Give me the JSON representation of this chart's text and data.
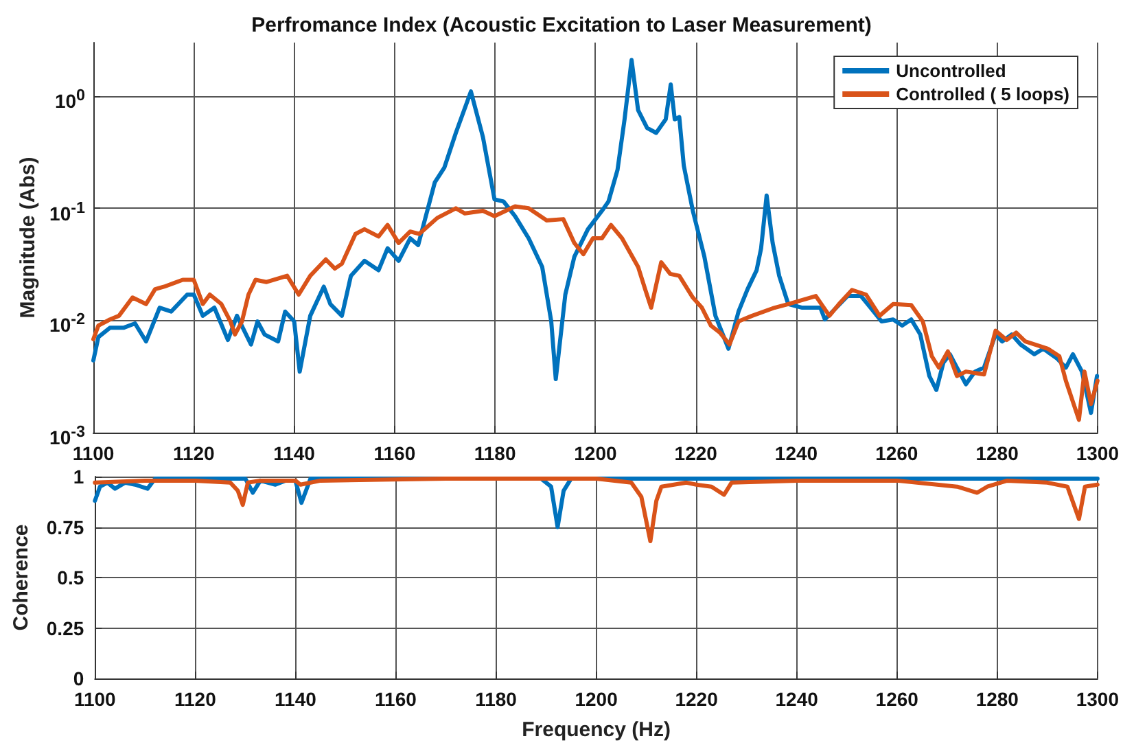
{
  "chart_data": [
    {
      "type": "line",
      "title": "Perfromance Index (Acoustic Excitation to Laser Measurement)",
      "ylabel": "Magnitude (Abs)",
      "log": "y",
      "grid": true,
      "legend": "top right",
      "xlim": [
        1100,
        1300
      ],
      "xticks": [
        1100,
        1120,
        1140,
        1160,
        1180,
        1200,
        1220,
        1240,
        1260,
        1280,
        1300
      ],
      "ylim": [
        0.001,
        3
      ],
      "yticks": [
        {
          "value": 0.001,
          "label": "10$^{-3}$"
        },
        {
          "value": 0.01,
          "label": "10$^{-2}$"
        },
        {
          "value": 0.1,
          "label": "10$^{-1}$"
        },
        {
          "value": 1,
          "label": "10$^{0}$"
        }
      ],
      "series": [
        {
          "name": "Uncontrolled",
          "color": "#0072bd",
          "x": [
            1100,
            1101,
            1103.3,
            1106,
            1108.3,
            1110.5,
            1113.2,
            1115.5,
            1118.7,
            1120,
            1121.8,
            1124.1,
            1126.8,
            1128.6,
            1131.4,
            1132.7,
            1134.1,
            1136.8,
            1138.2,
            1140,
            1141.1,
            1143.2,
            1145.9,
            1147.2,
            1149.5,
            1151.3,
            1154,
            1156.8,
            1158.6,
            1160.8,
            1163.1,
            1164.7,
            1168,
            1169.9,
            1172.2,
            1175.2,
            1177.6,
            1179.9,
            1181.7,
            1184,
            1186.7,
            1189.4,
            1191.2,
            1192.1,
            1194,
            1195.8,
            1198.5,
            1201.3,
            1202.6,
            1204.4,
            1205.8,
            1207.2,
            1208.5,
            1210.3,
            1212.1,
            1214,
            1215,
            1215.8,
            1216.7,
            1217.6,
            1219.4,
            1221.7,
            1223.9,
            1226.5,
            1228.5,
            1230.3,
            1232.1,
            1233,
            1234.1,
            1235.3,
            1236.6,
            1238.4,
            1241.2,
            1244.8,
            1245.7,
            1250.2,
            1252.9,
            1254.8,
            1257,
            1259.3,
            1261.1,
            1262.9,
            1264.7,
            1266.5,
            1267.9,
            1269.3,
            1270.6,
            1272,
            1273.8,
            1275.6,
            1277.4,
            1279.7,
            1281,
            1282.9,
            1284.7,
            1287.4,
            1289.2,
            1291.9,
            1293.7,
            1295.1,
            1296.9,
            1298.7,
            1299.9
          ],
          "values": [
            0.0044,
            0.0071,
            0.0086,
            0.0086,
            0.0094,
            0.0065,
            0.013,
            0.012,
            0.017,
            0.017,
            0.011,
            0.013,
            0.0067,
            0.011,
            0.0061,
            0.0098,
            0.0075,
            0.0065,
            0.012,
            0.0098,
            0.0035,
            0.011,
            0.02,
            0.014,
            0.011,
            0.025,
            0.034,
            0.028,
            0.044,
            0.034,
            0.054,
            0.047,
            0.17,
            0.23,
            0.47,
            1.1,
            0.43,
            0.12,
            0.115,
            0.085,
            0.054,
            0.03,
            0.0098,
            0.003,
            0.017,
            0.037,
            0.065,
            0.095,
            0.115,
            0.22,
            0.62,
            2.1,
            0.75,
            0.52,
            0.47,
            0.62,
            1.27,
            0.62,
            0.65,
            0.24,
            0.095,
            0.037,
            0.011,
            0.0056,
            0.012,
            0.019,
            0.028,
            0.044,
            0.13,
            0.049,
            0.025,
            0.014,
            0.013,
            0.013,
            0.0102,
            0.0165,
            0.0165,
            0.013,
            0.0098,
            0.0102,
            0.009,
            0.0102,
            0.0075,
            0.0032,
            0.0024,
            0.0042,
            0.005,
            0.0038,
            0.0027,
            0.0035,
            0.0038,
            0.0075,
            0.0065,
            0.0075,
            0.0061,
            0.005,
            0.0056,
            0.0046,
            0.0038,
            0.005,
            0.0035,
            0.0015,
            0.0032
          ]
        },
        {
          "name": "Controlled ( 5 loops)",
          "color": "#d95319",
          "x": [
            1100,
            1101,
            1103.3,
            1105.1,
            1107.8,
            1110.5,
            1112.3,
            1114.1,
            1117.8,
            1120,
            1121.8,
            1123.2,
            1125.5,
            1127.3,
            1128.2,
            1129.6,
            1130.9,
            1132.3,
            1134.5,
            1138.6,
            1140.9,
            1143.2,
            1146.3,
            1148.1,
            1149.5,
            1152.2,
            1154,
            1156.8,
            1158.6,
            1160.8,
            1163.1,
            1164.9,
            1168.5,
            1172.2,
            1174,
            1177.6,
            1179.9,
            1184,
            1186.7,
            1190.3,
            1193.6,
            1195.8,
            1197.6,
            1199.5,
            1201.3,
            1203.1,
            1205.3,
            1208.5,
            1209.9,
            1211.1,
            1213.1,
            1214.9,
            1216.7,
            1219.4,
            1221.2,
            1223,
            1224.8,
            1226.7,
            1228.5,
            1231.2,
            1235.7,
            1238.4,
            1243.9,
            1246.6,
            1248.5,
            1251.1,
            1253.9,
            1256.6,
            1259.3,
            1262.9,
            1265.2,
            1267,
            1268.4,
            1270.2,
            1272,
            1273.8,
            1277.4,
            1279.7,
            1281.9,
            1283.8,
            1285.6,
            1290.1,
            1292.4,
            1293.7,
            1296.3,
            1297.4,
            1298.7,
            1300
          ],
          "values": [
            0.0068,
            0.009,
            0.0102,
            0.011,
            0.016,
            0.014,
            0.019,
            0.02,
            0.023,
            0.023,
            0.014,
            0.017,
            0.014,
            0.0098,
            0.0075,
            0.0098,
            0.017,
            0.023,
            0.022,
            0.025,
            0.017,
            0.025,
            0.035,
            0.029,
            0.032,
            0.059,
            0.065,
            0.056,
            0.071,
            0.049,
            0.062,
            0.059,
            0.082,
            0.1,
            0.09,
            0.095,
            0.085,
            0.104,
            0.1,
            0.078,
            0.08,
            0.049,
            0.039,
            0.054,
            0.054,
            0.071,
            0.054,
            0.03,
            0.019,
            0.013,
            0.033,
            0.026,
            0.025,
            0.016,
            0.013,
            0.009,
            0.0078,
            0.0061,
            0.0098,
            0.011,
            0.013,
            0.014,
            0.0165,
            0.011,
            0.014,
            0.0187,
            0.017,
            0.011,
            0.014,
            0.0137,
            0.0098,
            0.0048,
            0.0038,
            0.0053,
            0.0032,
            0.0035,
            0.0033,
            0.0081,
            0.0067,
            0.0078,
            0.0065,
            0.0056,
            0.0048,
            0.0029,
            0.0013,
            0.0035,
            0.0018,
            0.0029
          ]
        }
      ]
    },
    {
      "type": "line",
      "xlabel": "Frequency (Hz)",
      "ylabel": "Coherence",
      "grid": true,
      "xlim": [
        1100,
        1300
      ],
      "xticks": [
        1100,
        1120,
        1140,
        1160,
        1180,
        1200,
        1220,
        1240,
        1260,
        1280,
        1300
      ],
      "ylim": [
        0,
        1
      ],
      "yticks": [
        0,
        0.25,
        0.5,
        0.75,
        1
      ],
      "series": [
        {
          "color": "#0072bd",
          "x": [
            1100,
            1101,
            1102.5,
            1104,
            1106,
            1108,
            1110.5,
            1112,
            1120,
            1130,
            1131.5,
            1133,
            1136,
            1138,
            1140,
            1141.2,
            1143,
            1160,
            1180,
            1189,
            1191,
            1192.3,
            1193.5,
            1195,
            1220,
            1250,
            1280,
            1300
          ],
          "values": [
            0.88,
            0.95,
            0.97,
            0.94,
            0.97,
            0.96,
            0.94,
            0.99,
            0.99,
            0.99,
            0.92,
            0.98,
            0.96,
            0.98,
            0.98,
            0.87,
            0.99,
            0.99,
            0.99,
            0.99,
            0.95,
            0.75,
            0.93,
            0.99,
            0.99,
            0.99,
            0.99,
            0.99
          ]
        },
        {
          "color": "#d95319",
          "x": [
            1100,
            1110,
            1120,
            1127,
            1128.5,
            1129.5,
            1130.5,
            1133,
            1140,
            1141,
            1145,
            1170,
            1200,
            1207,
            1209,
            1210.8,
            1212,
            1213,
            1218,
            1220,
            1223,
            1225.5,
            1227,
            1240,
            1260,
            1268,
            1272,
            1276,
            1278,
            1282,
            1290,
            1294,
            1296.3,
            1297.5,
            1300
          ],
          "values": [
            0.97,
            0.98,
            0.98,
            0.97,
            0.93,
            0.86,
            0.97,
            0.98,
            0.98,
            0.96,
            0.98,
            0.99,
            0.99,
            0.97,
            0.9,
            0.68,
            0.88,
            0.95,
            0.97,
            0.96,
            0.95,
            0.91,
            0.97,
            0.98,
            0.98,
            0.96,
            0.95,
            0.92,
            0.95,
            0.98,
            0.97,
            0.95,
            0.79,
            0.95,
            0.96
          ]
        }
      ]
    }
  ]
}
